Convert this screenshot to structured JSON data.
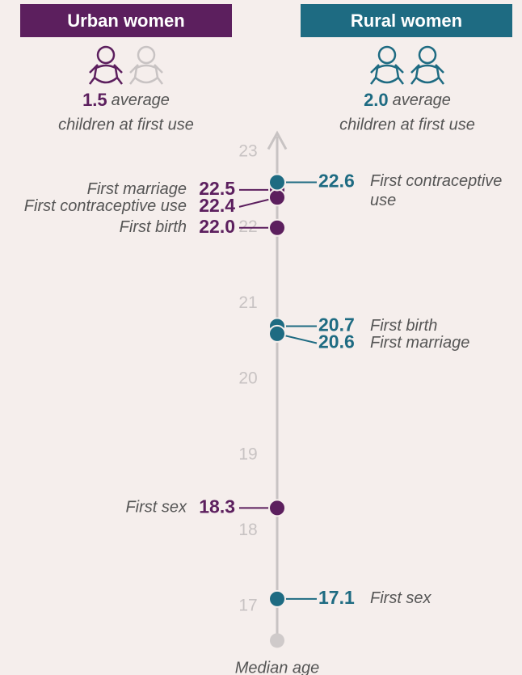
{
  "chart_data": {
    "type": "dot",
    "axis_label": "Median age",
    "ylim": [
      16.55,
      23.25
    ],
    "yticks": [
      17,
      18,
      19,
      20,
      21,
      22,
      23
    ],
    "children_text": [
      "average",
      "children at first use"
    ],
    "series": [
      {
        "name": "Urban women",
        "color": "#5c1f5e",
        "values": [
          22.5,
          22.4,
          22.0,
          18.3
        ],
        "value_labels": [
          "22.5",
          "22.4",
          "22.0",
          "18.3"
        ],
        "labels": [
          "First marriage",
          "First contraceptive use",
          "First birth",
          "First sex"
        ],
        "children": 1.5,
        "children_label": "1.5"
      },
      {
        "name": "Rural women",
        "color": "#1e6b82",
        "values": [
          22.6,
          20.7,
          20.6,
          17.1
        ],
        "value_labels": [
          "22.6",
          "20.7",
          "20.6",
          "17.1"
        ],
        "labels": [
          "First contraceptive use",
          "First birth",
          "First marriage",
          "First sex"
        ],
        "children": 2.0,
        "children_label": "2.0"
      }
    ]
  }
}
